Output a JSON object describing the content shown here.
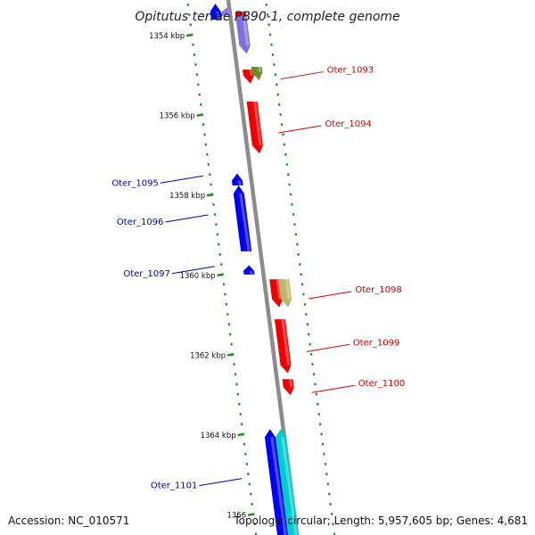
{
  "title": "Opitutus terrae PB90-1, complete genome",
  "footer": {
    "accession": "Accession: NC_010571",
    "summary": "Topology: circular; Length: 5,957,605 bp; Genes: 4,681"
  },
  "colors": {
    "backbone": "#8c8c8c",
    "dots": "#2a8a2a",
    "forward_label": "#cc0000",
    "reverse_label": "#0000bb"
  },
  "scale_labels": [
    {
      "kbp": 1354,
      "text": "1354 kbp"
    },
    {
      "kbp": 1356,
      "text": "1356 kbp"
    },
    {
      "kbp": 1358,
      "text": "1358 kbp"
    },
    {
      "kbp": 1360,
      "text": "1360 kbp"
    },
    {
      "kbp": 1362,
      "text": "1362 kbp"
    },
    {
      "kbp": 1364,
      "text": "1364 kbp"
    },
    {
      "kbp": 1366,
      "text": "1366"
    }
  ],
  "genes": [
    {
      "name": "",
      "strand": "reverse",
      "color": "#0000ee",
      "start_kbp": 1353.2,
      "end_kbp": 1353.6
    },
    {
      "name": "",
      "strand": "reverse",
      "color": "#8a7ae0",
      "start_kbp": 1353.3,
      "end_kbp": 1353.5
    },
    {
      "name": "",
      "strand": "forward",
      "color": "#ee0000",
      "start_kbp": 1353.4,
      "end_kbp": 1354.45
    },
    {
      "name": "",
      "strand": "forward",
      "color": "#8070dd",
      "start_kbp": 1353.5,
      "end_kbp": 1354.45
    },
    {
      "name": "",
      "strand": "forward",
      "color": "#ee0000",
      "start_kbp": 1354.85,
      "end_kbp": 1355.2
    },
    {
      "name": "Oter_1093",
      "strand": "forward",
      "color": "#6b8e23",
      "start_kbp": 1354.78,
      "end_kbp": 1355.12
    },
    {
      "name": "Oter_1094",
      "strand": "forward",
      "color": "#ee0000",
      "start_kbp": 1355.65,
      "end_kbp": 1356.95
    },
    {
      "name": "Oter_1095",
      "strand": "reverse",
      "color": "#0000ee",
      "start_kbp": 1357.45,
      "end_kbp": 1357.75
    },
    {
      "name": "Oter_1096",
      "strand": "reverse",
      "color": "#0000ee",
      "start_kbp": 1357.75,
      "end_kbp": 1359.4
    },
    {
      "name": "Oter_1097",
      "strand": "reverse",
      "color": "#0000ee",
      "start_kbp": 1359.75,
      "end_kbp": 1359.98
    },
    {
      "name": "",
      "strand": "forward",
      "color": "#ee0000",
      "start_kbp": 1360.1,
      "end_kbp": 1360.8
    },
    {
      "name": "Oter_1098",
      "strand": "forward",
      "color": "#bdb76b",
      "start_kbp": 1360.1,
      "end_kbp": 1360.8
    },
    {
      "name": "Oter_1099",
      "strand": "forward",
      "color": "#ee0000",
      "start_kbp": 1361.1,
      "end_kbp": 1362.45
    },
    {
      "name": "Oter_1100",
      "strand": "forward",
      "color": "#ee0000",
      "start_kbp": 1362.6,
      "end_kbp": 1363.0
    },
    {
      "name": "",
      "strand": "reverse",
      "color": "#00cccc",
      "start_kbp": 1363.85,
      "end_kbp": 1366.5
    },
    {
      "name": "Oter_1101",
      "strand": "reverse",
      "color": "#0000ee",
      "start_kbp": 1363.85,
      "end_kbp": 1366.5
    }
  ]
}
